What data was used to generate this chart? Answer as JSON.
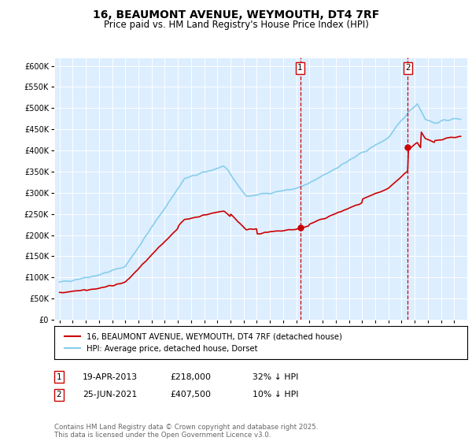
{
  "title": "16, BEAUMONT AVENUE, WEYMOUTH, DT4 7RF",
  "subtitle": "Price paid vs. HM Land Registry's House Price Index (HPI)",
  "ylabel_ticks": [
    "£0",
    "£50K",
    "£100K",
    "£150K",
    "£200K",
    "£250K",
    "£300K",
    "£350K",
    "£400K",
    "£450K",
    "£500K",
    "£550K",
    "£600K"
  ],
  "ytick_vals": [
    0,
    50000,
    100000,
    150000,
    200000,
    250000,
    300000,
    350000,
    400000,
    450000,
    500000,
    550000,
    600000
  ],
  "ylim": [
    0,
    620000
  ],
  "hpi_color": "#87CEEB",
  "price_color": "#CC0000",
  "dashed_color": "#CC0000",
  "background_color": "#ddeeff",
  "sale1": {
    "date": "19-APR-2013",
    "price": 218000,
    "label": "1",
    "pct": "32% ↓ HPI"
  },
  "sale2": {
    "date": "25-JUN-2021",
    "price": 407500,
    "label": "2",
    "pct": "10% ↓ HPI"
  },
  "legend1": "16, BEAUMONT AVENUE, WEYMOUTH, DT4 7RF (detached house)",
  "legend2": "HPI: Average price, detached house, Dorset",
  "footer": "Contains HM Land Registry data © Crown copyright and database right 2025.\nThis data is licensed under the Open Government Licence v3.0.",
  "title_fontsize": 10,
  "subtitle_fontsize": 8.5,
  "tick_fontsize": 7
}
